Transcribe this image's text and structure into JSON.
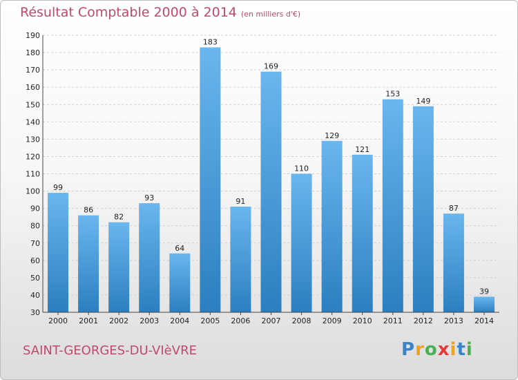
{
  "header": {
    "title": "Résultat Comptable 2000 à 2014",
    "unit": "(en milliers d'€)"
  },
  "footer": {
    "city": "SAINT-GEORGES-DU-VIèVRE",
    "logo_letters": [
      "P",
      "r",
      "o",
      "x",
      "i",
      "t",
      "i"
    ],
    "logo_colors": [
      "#3b83c4",
      "#f0a21a",
      "#4caf50",
      "#e53935",
      "#f0a21a",
      "#3b83c4",
      "#4caf50"
    ]
  },
  "colors": {
    "bar_light": "#6ab6ee",
    "bar_dark": "#2b7fc0",
    "grid": "#cfcfcf"
  },
  "chart_data": {
    "type": "bar",
    "categories": [
      "2000",
      "2001",
      "2002",
      "2003",
      "2004",
      "2005",
      "2006",
      "2007",
      "2008",
      "2009",
      "2010",
      "2011",
      "2012",
      "2013",
      "2014"
    ],
    "values": [
      99,
      86,
      82,
      93,
      64,
      183,
      91,
      169,
      110,
      129,
      121,
      153,
      149,
      87,
      39
    ],
    "ylim": [
      30,
      190
    ],
    "yticks": [
      30,
      40,
      50,
      60,
      70,
      80,
      90,
      100,
      110,
      120,
      130,
      140,
      150,
      160,
      170,
      180,
      190
    ],
    "grid": true
  }
}
